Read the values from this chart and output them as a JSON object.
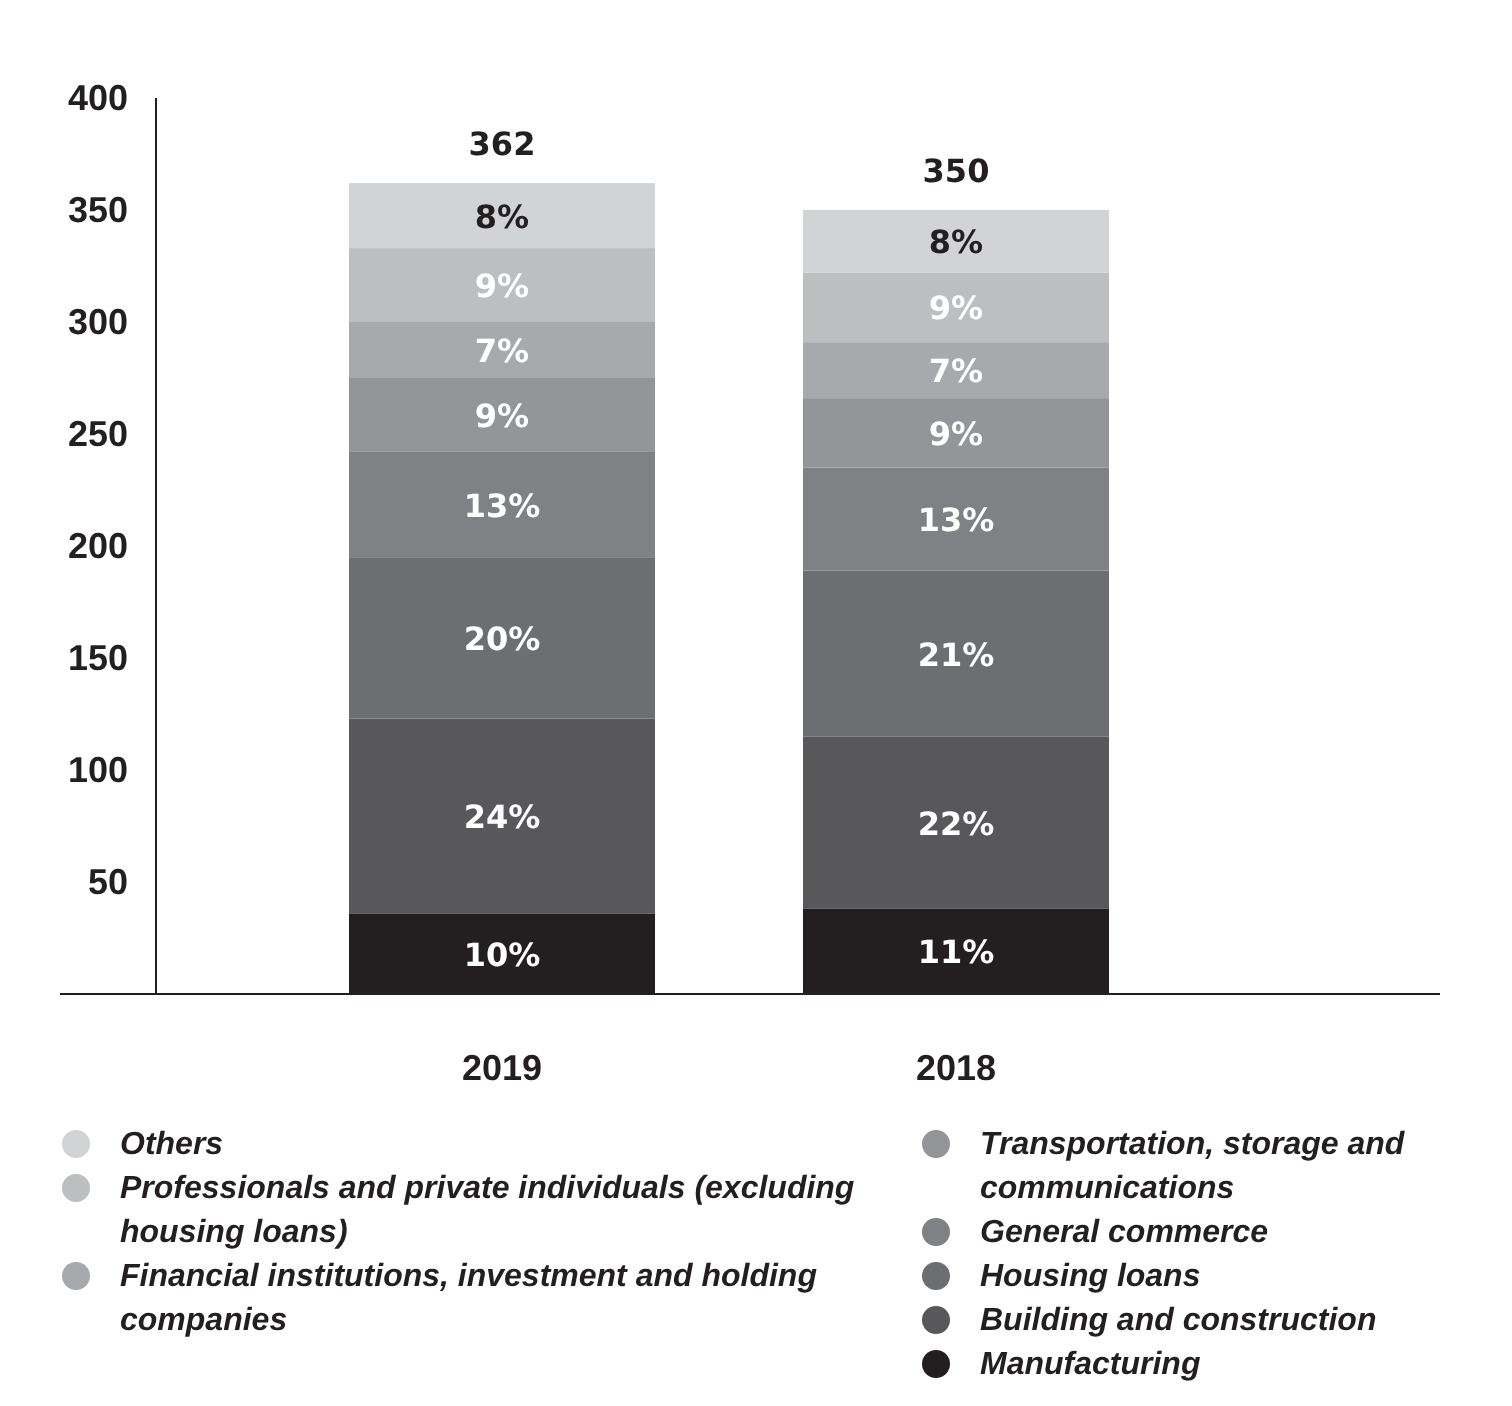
{
  "chart_data": {
    "type": "bar",
    "stacked": true,
    "categories": [
      "2019",
      "2018"
    ],
    "ylim": [
      0,
      400
    ],
    "yticks": [
      50,
      100,
      150,
      200,
      250,
      300,
      350,
      400
    ],
    "grid": false,
    "legend": "bottom",
    "totals": [
      "362",
      "350"
    ],
    "series": [
      {
        "name": "Manufacturing",
        "color": "#231f20",
        "values": [
          36,
          38
        ]
      },
      {
        "name": "Building and construction",
        "color": "#58585a",
        "values": [
          87,
          77
        ]
      },
      {
        "name": "Housing loans",
        "color": "#6d6e71",
        "values": [
          72,
          74
        ]
      },
      {
        "name": "General commerce",
        "color": "#808184",
        "values": [
          47,
          46
        ]
      },
      {
        "name": "Transportation, storage and communications",
        "color": "#939598",
        "values": [
          33,
          31
        ]
      },
      {
        "name": "Financial institutions, investment and holding companies",
        "color": "#a7a9ac",
        "values": [
          25,
          25
        ]
      },
      {
        "name": "Professionals and private individuals (excluding housing loans)",
        "color": "#bcbec0",
        "values": [
          33,
          31
        ]
      },
      {
        "name": "Others",
        "color": "#d1d3d4",
        "values": [
          29,
          28
        ]
      }
    ],
    "annotations": [
      "10%",
      "24%",
      "20%",
      "13%",
      "9%",
      "7%",
      "9%",
      "8%",
      "11%",
      "22%",
      "21%",
      "13%",
      "9%",
      "7%",
      "9%",
      "8%"
    ]
  }
}
